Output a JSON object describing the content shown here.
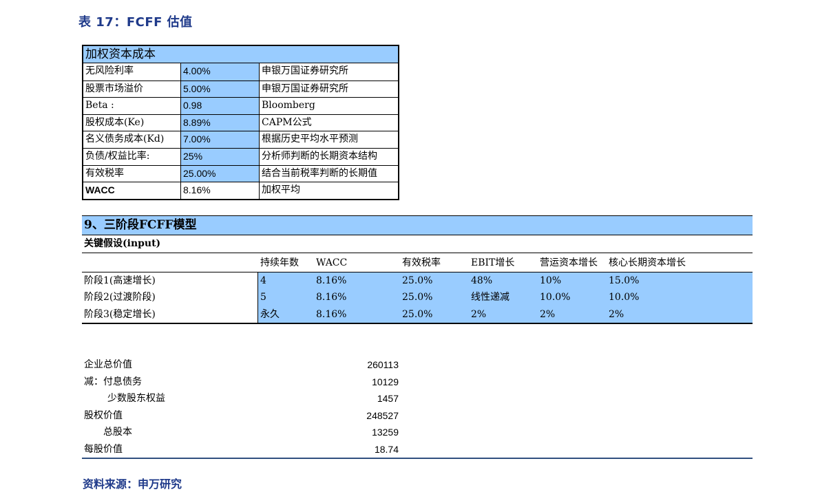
{
  "title": "表 17：FCFF 估值",
  "wacc_table": {
    "heading": "加权资本成本",
    "rows": [
      {
        "label": "无风险利率",
        "value": "4.00%",
        "note": "申银万国证券研究所"
      },
      {
        "label": "股票市场溢价",
        "value": "5.00%",
        "note": "申银万国证券研究所"
      },
      {
        "label": "Beta :",
        "value": "0.98",
        "note": "Bloomberg"
      },
      {
        "label": "股权成本(Ke)",
        "value": "8.89%",
        "note": "CAPM公式"
      },
      {
        "label": "名义债务成本(Kd)",
        "value": "7.00%",
        "note": "根据历史平均水平预测"
      },
      {
        "label": "负债/权益比率:",
        "value": "25%",
        "note": "分析师判断的长期资本结构"
      },
      {
        "label": "有效税率",
        "value": "25.00%",
        "note": "结合当前税率判断的长期值"
      },
      {
        "label": "WACC",
        "value": "8.16%",
        "note": "加权平均"
      }
    ]
  },
  "model": {
    "heading": "9、三阶段FCFF模型",
    "subheading": "关键假设(input)",
    "columns": [
      "持续年数",
      "WACC",
      "有效税率",
      "EBIT增长",
      "营运资本增长",
      "核心长期资本增长"
    ],
    "stages": [
      {
        "name": "阶段1(高速增长)",
        "values": [
          "4",
          "8.16%",
          "25.0%",
          "48%",
          "10%",
          "15.0%"
        ]
      },
      {
        "name": "阶段2(过渡阶段)",
        "values": [
          "5",
          "8.16%",
          "25.0%",
          "线性递减",
          "10.0%",
          "10.0%"
        ]
      },
      {
        "name": "阶段3(稳定增长)",
        "values": [
          "永久",
          "8.16%",
          "25.0%",
          "2%",
          "2%",
          "2%"
        ]
      }
    ]
  },
  "valuation": [
    {
      "label": "企业总价值",
      "value": "260113"
    },
    {
      "label": "减：付息债务",
      "value": "10129"
    },
    {
      "label": "少数股东权益",
      "value": "1457"
    },
    {
      "label": "股权价值",
      "value": "248527"
    },
    {
      "label": "总股本",
      "value": "13259"
    },
    {
      "label": "每股价值",
      "value": "18.74"
    }
  ],
  "source": "资料来源：申万研究",
  "colors": {
    "header_fill": "#99ccff",
    "title_text": "#1f3a8a"
  }
}
